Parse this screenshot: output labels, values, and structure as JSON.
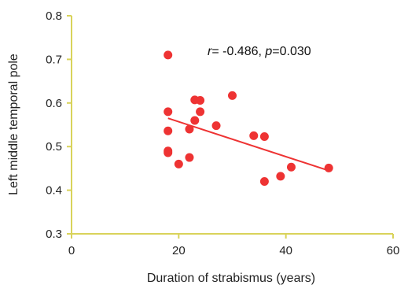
{
  "chart_data": {
    "type": "scatter",
    "xlabel": "Duration of strabismus (years)",
    "ylabel": "Left middle temporal pole",
    "xlim": [
      0,
      60
    ],
    "ylim": [
      0.3,
      0.8
    ],
    "x_ticks": [
      "0",
      "20",
      "40",
      "60"
    ],
    "y_ticks": [
      "0.3",
      "0.4",
      "0.5",
      "0.6",
      "0.7",
      "0.8"
    ],
    "annotation": {
      "r_symbol": "r",
      "r_text": "= -0.486, ",
      "p_symbol": "p",
      "p_text": "=0.030"
    },
    "colors": {
      "points": "#ee3333",
      "fit_line": "#ee3333",
      "axes": "#d9d35a"
    },
    "points": [
      {
        "x": 18,
        "y": 0.71
      },
      {
        "x": 18,
        "y": 0.58
      },
      {
        "x": 18,
        "y": 0.536
      },
      {
        "x": 18,
        "y": 0.49
      },
      {
        "x": 18,
        "y": 0.486
      },
      {
        "x": 20,
        "y": 0.46
      },
      {
        "x": 22,
        "y": 0.54
      },
      {
        "x": 22,
        "y": 0.475
      },
      {
        "x": 23,
        "y": 0.607
      },
      {
        "x": 23,
        "y": 0.56
      },
      {
        "x": 24,
        "y": 0.606
      },
      {
        "x": 24,
        "y": 0.58
      },
      {
        "x": 27,
        "y": 0.548
      },
      {
        "x": 30,
        "y": 0.617
      },
      {
        "x": 34,
        "y": 0.525
      },
      {
        "x": 36,
        "y": 0.523
      },
      {
        "x": 36,
        "y": 0.42
      },
      {
        "x": 39,
        "y": 0.432
      },
      {
        "x": 41,
        "y": 0.453
      },
      {
        "x": 48,
        "y": 0.451
      }
    ],
    "fit_line": {
      "x": [
        18,
        48
      ],
      "y": [
        0.565,
        0.445
      ]
    }
  }
}
